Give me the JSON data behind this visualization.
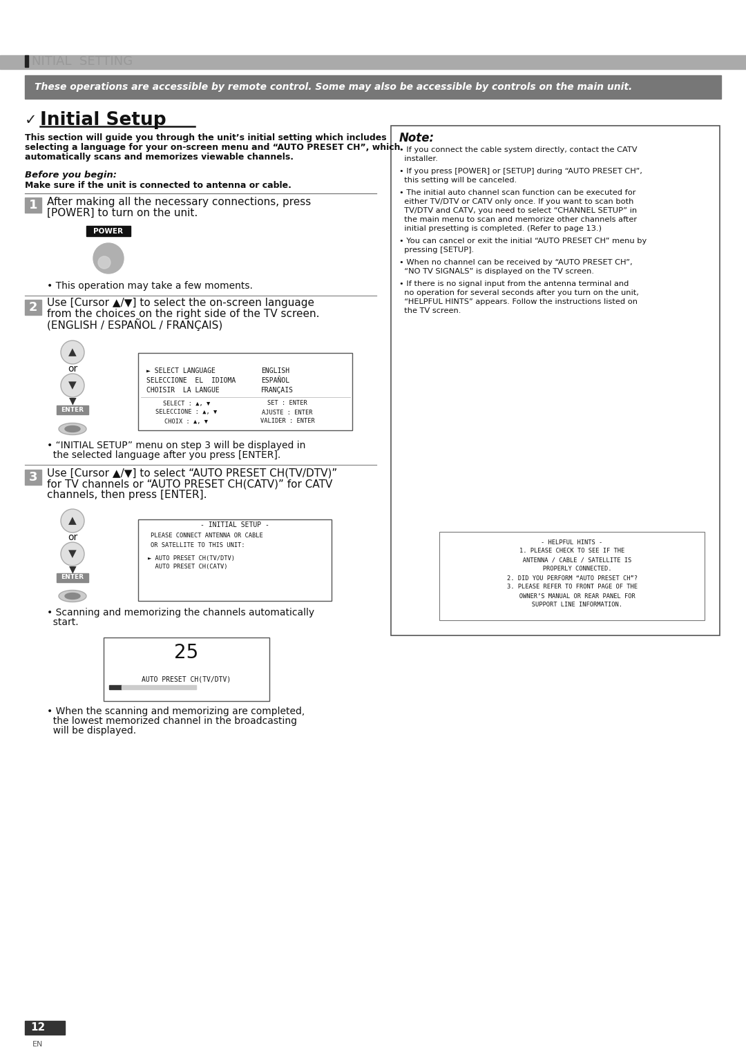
{
  "page_bg": "#ffffff",
  "header_text": "NITIAL  SETTING",
  "info_bar_text": "These operations are accessible by remote control. Some may also be accessible by controls on the main unit.",
  "title_checkbox": "✓",
  "title_text": "Initial Setup",
  "intro_text": "This section will guide you through the unit’s initial setting which includes\nselecting a language for your on-screen menu and “AUTO PRESET CH”, which\nautomatically scans and memorizes viewable channels.",
  "before_label": "Before you begin:",
  "before_text": "Make sure if the unit is connected to antenna or cable.",
  "step1_text_line1": "After making all the necessary connections, press",
  "step1_text_line2": "[POWER] to turn on the unit.",
  "step1_note": "• This operation may take a few moments.",
  "step2_text_line1": "Use [Cursor ▲/▼] to select the on-screen language",
  "step2_text_line2": "from the choices on the right side of the TV screen.",
  "step2_text_line3": "(ENGLISH / ESPAÑOL / FRANÇAIS)",
  "step2_note_line1": "• “INITIAL SETUP” menu on step 3 will be displayed in",
  "step2_note_line2": "  the selected language after you press [ENTER].",
  "step3_text_line1": "Use [Cursor ▲/▼] to select “AUTO PRESET CH(TV/DTV)”",
  "step3_text_line2": "for TV channels or “AUTO PRESET CH(CATV)” for CATV",
  "step3_text_line3": "channels, then press [ENTER].",
  "step3_note_line1": "• Scanning and memorizing the channels automatically",
  "step3_note_line2": "  start.",
  "step3_note2_line1": "• When the scanning and memorizing are completed,",
  "step3_note2_line2": "  the lowest memorized channel in the broadcasting",
  "step3_note2_line3": "  will be displayed.",
  "note_title": "Note:",
  "note_b1_l1": "• If you connect the cable system directly, contact the CATV",
  "note_b1_l2": "  installer.",
  "note_b2_l1": "• If you press [POWER] or [SETUP] during “AUTO PRESET CH”,",
  "note_b2_l2": "  this setting will be canceled.",
  "note_b3_l1": "• The initial auto channel scan function can be executed for",
  "note_b3_l2": "  either TV/DTV or CATV only once. If you want to scan both",
  "note_b3_l3": "  TV/DTV and CATV, you need to select “CHANNEL SETUP” in",
  "note_b3_l4": "  the main menu to scan and memorize other channels after",
  "note_b3_l5": "  initial presetting is completed. (Refer to page 13.)",
  "note_b4_l1": "• You can cancel or exit the initial “AUTO PRESET CH” menu by",
  "note_b4_l2": "  pressing [SETUP].",
  "note_b5_l1": "• When no channel can be received by “AUTO PRESET CH”,",
  "note_b5_l2": "  “NO TV SIGNALS” is displayed on the TV screen.",
  "note_b6_l1": "• If there is no signal input from the antenna terminal and",
  "note_b6_l2": "  no operation for several seconds after you turn on the unit,",
  "note_b6_l3": "  “HELPFUL HINTS” appears. Follow the instructions listed on",
  "note_b6_l4": "  the TV screen.",
  "hint_l1": "- HELPFUL HINTS -",
  "hint_l2": "1. PLEASE CHECK TO SEE IF THE",
  "hint_l3": "   ANTENNA / CABLE / SATELLITE IS",
  "hint_l4": "   PROPERLY CONNECTED.",
  "hint_l5": "2. DID YOU PERFORM “AUTO PRESET CH”?",
  "hint_l6": "3. PLEASE REFER TO FRONT PAGE OF THE",
  "hint_l7": "   OWNER’S MANUAL OR REAR PANEL FOR",
  "hint_l8": "   SUPPORT LINE INFORMATION.",
  "page_num": "12",
  "page_lang": "EN"
}
